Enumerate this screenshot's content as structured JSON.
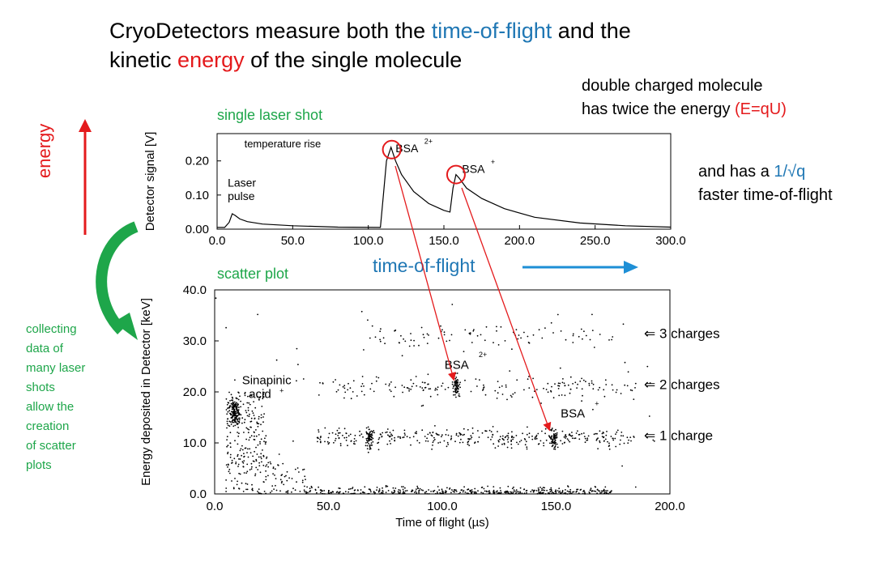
{
  "title": {
    "line1_a": "CryoDetectors measure both the ",
    "line1_b": "time-of-flight",
    "line1_c": " and the",
    "line2_a": "kinetic ",
    "line2_b": "energy",
    "line2_c": " of the single molecule"
  },
  "notes": {
    "double_1": "double charged molecule",
    "double_2a": "has twice the energy ",
    "double_2b": "(E=qU)",
    "faster_1a": "and has a ",
    "faster_1b": "1/√q",
    "faster_2": "faster time-of-flight",
    "energy_axis": "energy",
    "tof_axis": "time-of-flight",
    "single_shot": "single laser shot",
    "scatter": "scatter plot",
    "collecting": [
      "collecting",
      "data of",
      "many laser",
      "shots",
      "allow the",
      "creation",
      "of scatter",
      "plots"
    ]
  },
  "colors": {
    "accent_red": "#e41a1c",
    "accent_blue": "#1f77b4",
    "accent_green": "#1ea64a",
    "arrow_cyan": "#1e8fd6"
  },
  "chart_data": [
    {
      "type": "line",
      "ylabel": "Detector signal [V]",
      "xlim": [
        0,
        300
      ],
      "ylim": [
        0,
        0.28
      ],
      "xticks": [
        "0.0",
        "50.0",
        "100.0",
        "150.0",
        "200.0",
        "250.0",
        "300.0"
      ],
      "yticks": [
        "0.00",
        "0.10",
        "0.20"
      ],
      "annotations": {
        "laser": "Laser",
        "pulse": "pulse",
        "temp": "temperature rise",
        "bsa2": "BSA",
        "bsa2_sup": "2+",
        "bsa1": "BSA",
        "bsa1_sup": "+"
      },
      "series": [
        {
          "x": [
            0,
            5,
            8,
            10,
            12,
            15,
            20,
            30,
            50,
            80,
            108,
            110,
            112,
            115,
            118,
            122,
            130,
            140,
            150,
            154,
            156,
            158,
            160,
            165,
            175,
            190,
            210,
            240,
            270,
            300
          ],
          "y": [
            0.005,
            0.005,
            0.02,
            0.045,
            0.04,
            0.03,
            0.022,
            0.015,
            0.01,
            0.006,
            0.005,
            0.1,
            0.2,
            0.24,
            0.2,
            0.16,
            0.11,
            0.075,
            0.055,
            0.05,
            0.12,
            0.16,
            0.15,
            0.12,
            0.09,
            0.06,
            0.035,
            0.018,
            0.01,
            0.006
          ]
        }
      ]
    },
    {
      "type": "scatter",
      "xlabel": "Time of flight (µs)",
      "ylabel": "Energy deposited in Detector [keV]",
      "xlim": [
        0,
        200
      ],
      "ylim": [
        0,
        40
      ],
      "xticks": [
        "0.0",
        "50.0",
        "100.0",
        "150.0",
        "200.0"
      ],
      "yticks": [
        "0.0",
        "10.0",
        "20.0",
        "30.0",
        "40.0"
      ],
      "annotations": {
        "sinapinic_1": "Sinapinic",
        "sinapinic_2": "acid",
        "sinapinic_sup": "+",
        "bsa2": "BSA",
        "bsa2_sup": "2+",
        "bsa1": "BSA",
        "bsa1_sup": "+"
      },
      "charge_labels": [
        "⇐  3 charges",
        "⇐  2 charges",
        "⇐  1 charge"
      ],
      "clusters": [
        {
          "name": "sinapinic acid",
          "x": 9,
          "y": 16
        },
        {
          "name": "BSA 1+ low",
          "x": 68,
          "y": 11
        },
        {
          "name": "BSA 2+",
          "x": 106,
          "y": 21
        },
        {
          "name": "BSA 1+",
          "x": 149,
          "y": 11
        }
      ]
    }
  ]
}
